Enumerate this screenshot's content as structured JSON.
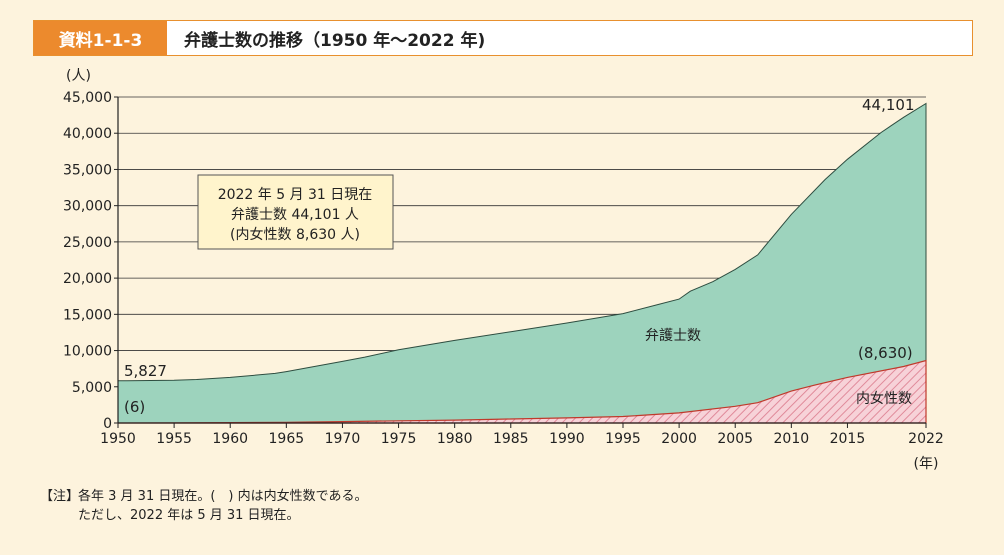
{
  "header": {
    "badge": "資料1-1-3",
    "title": "弁護士数の推移（1950 年～2022 年)"
  },
  "note": {
    "tag": "【注】",
    "line1": "各年 3 月 31 日現在。(　) 内は内女性数である。",
    "line2": "ただし、2022 年は 5 月 31 日現在。"
  },
  "chart_data": {
    "type": "area",
    "y_unit_label": "(人)",
    "x_unit_label": "(年)",
    "ylim": [
      0,
      45000
    ],
    "xlim": [
      1950,
      2022
    ],
    "y_ticks": [
      "0",
      "5,000",
      "10,000",
      "15,000",
      "20,000",
      "25,000",
      "30,000",
      "35,000",
      "40,000",
      "45,000"
    ],
    "x_ticks": [
      "1950",
      "1955",
      "1960",
      "1965",
      "1970",
      "1975",
      "1980",
      "1985",
      "1990",
      "1995",
      "2000",
      "2005",
      "2010",
      "2015",
      "2022"
    ],
    "grid": true,
    "series": [
      {
        "name": "弁護士数",
        "color": "#9dd3bd",
        "x": [
          1950,
          1955,
          1957,
          1960,
          1964,
          1965,
          1970,
          1972,
          1975,
          1980,
          1985,
          1990,
          1995,
          1998,
          2000,
          2001,
          2003,
          2005,
          2007,
          2010,
          2013,
          2015,
          2018,
          2020,
          2022
        ],
        "values": [
          5827,
          5900,
          6000,
          6300,
          6850,
          7100,
          8500,
          9100,
          10100,
          11400,
          12600,
          13800,
          15100,
          16300,
          17100,
          18200,
          19500,
          21200,
          23200,
          28800,
          33600,
          36400,
          40100,
          42200,
          44101
        ]
      },
      {
        "name": "内女性数",
        "color": "#e79aa8",
        "x": [
          1950,
          1955,
          1960,
          1965,
          1970,
          1975,
          1980,
          1985,
          1990,
          1995,
          2000,
          2005,
          2007,
          2010,
          2012,
          2015,
          2020,
          2022
        ],
        "values": [
          6,
          20,
          50,
          100,
          200,
          300,
          400,
          550,
          700,
          900,
          1400,
          2300,
          2800,
          4400,
          5200,
          6300,
          7800,
          8630
        ]
      }
    ],
    "data_labels": {
      "total_start": "5,827",
      "female_start": "(6)",
      "total_end": "44,101",
      "female_end": "(8,630)",
      "total_series": "弁護士数",
      "female_series": "内女性数"
    },
    "annotation_box": {
      "line1": "2022 年 5 月 31 日現在",
      "line2": "弁護士数 44,101 人",
      "line3": "(内女性数 8,630 人)"
    }
  }
}
